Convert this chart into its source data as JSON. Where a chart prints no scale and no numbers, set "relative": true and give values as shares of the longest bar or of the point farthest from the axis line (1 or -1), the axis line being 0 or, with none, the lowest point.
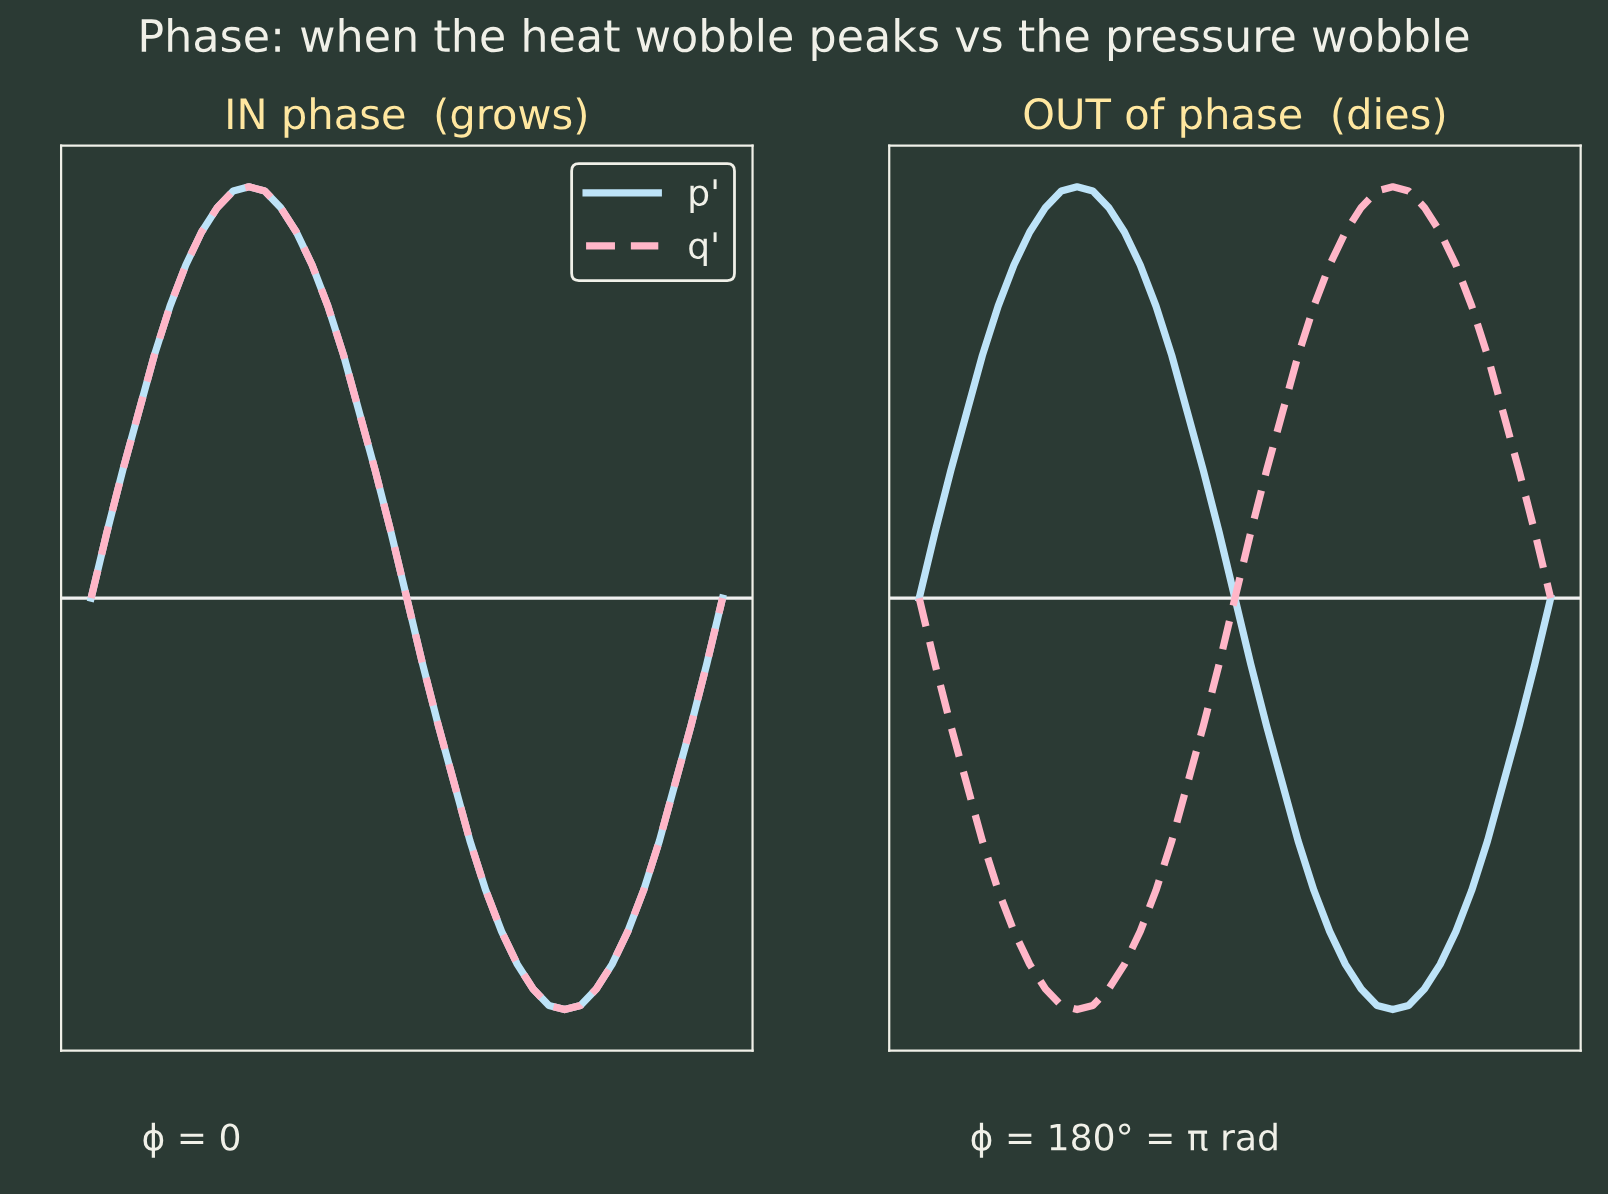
{
  "chart_data": [
    {
      "type": "line",
      "title": "Phase: when the heat wobble peaks vs the pressure wobble",
      "subtitle": "IN phase  (grows)",
      "relative": true,
      "tick_labels": false,
      "legend": "top right",
      "categories": [
        null,
        null,
        null,
        null,
        null,
        null,
        null,
        null,
        null,
        null,
        null,
        null,
        null,
        null,
        null,
        null,
        null,
        null,
        null,
        null,
        null,
        null,
        null,
        null,
        null,
        null,
        null,
        null,
        null,
        null,
        null,
        null,
        null,
        null,
        null,
        null,
        null,
        null,
        null,
        null,
        null
      ],
      "series": [
        {
          "name": "p'",
          "color": "#bde3f8",
          "line_style": "solid",
          "values": [
            0,
            0.16,
            0.31,
            0.45,
            0.59,
            0.71,
            0.81,
            0.89,
            0.95,
            0.99,
            1,
            0.99,
            0.95,
            0.89,
            0.81,
            0.71,
            0.59,
            0.45,
            0.31,
            0.16,
            0,
            -0.16,
            -0.31,
            -0.45,
            -0.59,
            -0.71,
            -0.81,
            -0.89,
            -0.95,
            -0.99,
            -1,
            -0.99,
            -0.95,
            -0.89,
            -0.81,
            -0.71,
            -0.59,
            -0.45,
            -0.31,
            -0.16,
            0
          ]
        },
        {
          "name": "q'",
          "color": "#ffb6c8",
          "line_style": "dashed",
          "values": [
            0,
            0.16,
            0.31,
            0.45,
            0.59,
            0.71,
            0.81,
            0.89,
            0.95,
            0.99,
            1,
            0.99,
            0.95,
            0.89,
            0.81,
            0.71,
            0.59,
            0.45,
            0.31,
            0.16,
            0,
            -0.16,
            -0.31,
            -0.45,
            -0.59,
            -0.71,
            -0.81,
            -0.89,
            -0.95,
            -0.99,
            -1,
            -0.99,
            -0.95,
            -0.89,
            -0.81,
            -0.71,
            -0.59,
            -0.45,
            -0.31,
            -0.16,
            0
          ]
        }
      ],
      "ref_lines": [
        {
          "axis": "y",
          "value": 0,
          "color": "#f0f0f0"
        }
      ],
      "annotations": [
        "ϕ = 0"
      ]
    },
    {
      "type": "line",
      "subtitle": "OUT of phase  (dies)",
      "relative": true,
      "tick_labels": false,
      "categories": [
        null,
        null,
        null,
        null,
        null,
        null,
        null,
        null,
        null,
        null,
        null,
        null,
        null,
        null,
        null,
        null,
        null,
        null,
        null,
        null,
        null,
        null,
        null,
        null,
        null,
        null,
        null,
        null,
        null,
        null,
        null,
        null,
        null,
        null,
        null,
        null,
        null,
        null,
        null,
        null,
        null
      ],
      "series": [
        {
          "color": "#bde3f8",
          "line_style": "solid",
          "values": [
            0,
            0.16,
            0.31,
            0.45,
            0.59,
            0.71,
            0.81,
            0.89,
            0.95,
            0.99,
            1,
            0.99,
            0.95,
            0.89,
            0.81,
            0.71,
            0.59,
            0.45,
            0.31,
            0.16,
            0,
            -0.16,
            -0.31,
            -0.45,
            -0.59,
            -0.71,
            -0.81,
            -0.89,
            -0.95,
            -0.99,
            -1,
            -0.99,
            -0.95,
            -0.89,
            -0.81,
            -0.71,
            -0.59,
            -0.45,
            -0.31,
            -0.16,
            0
          ]
        },
        {
          "color": "#ffb6c8",
          "line_style": "dashed",
          "values": [
            0,
            -0.16,
            -0.31,
            -0.45,
            -0.59,
            -0.71,
            -0.81,
            -0.89,
            -0.95,
            -0.99,
            -1,
            -0.99,
            -0.95,
            -0.89,
            -0.81,
            -0.71,
            -0.59,
            -0.45,
            -0.31,
            -0.16,
            0,
            0.16,
            0.31,
            0.45,
            0.59,
            0.71,
            0.81,
            0.89,
            0.95,
            0.99,
            1,
            0.99,
            0.95,
            0.89,
            0.81,
            0.71,
            0.59,
            0.45,
            0.31,
            0.16,
            0
          ]
        }
      ],
      "ref_lines": [
        {
          "axis": "y",
          "value": 0,
          "color": "#f0f0f0"
        }
      ],
      "annotations": [
        "ϕ = 180° = π rad"
      ]
    }
  ]
}
